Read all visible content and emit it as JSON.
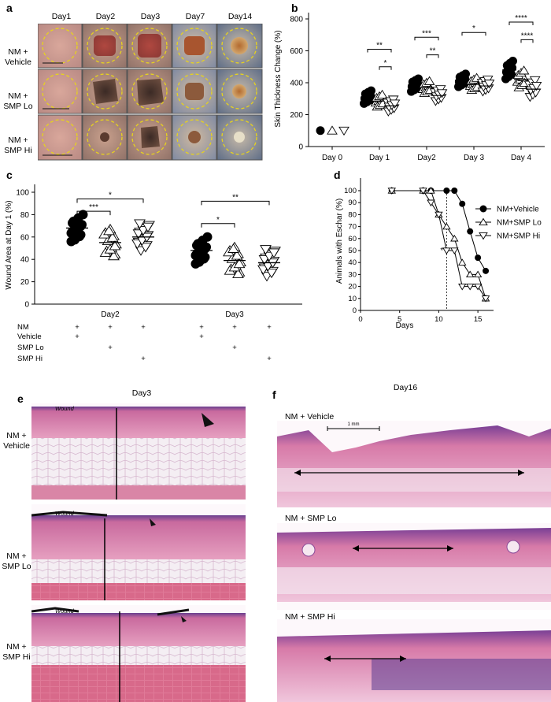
{
  "panels": {
    "a": "a",
    "b": "b",
    "c": "c",
    "d": "d",
    "e": "e",
    "f": "f"
  },
  "panel_a": {
    "days": [
      "Day1",
      "Day2",
      "Day3",
      "Day7",
      "Day14"
    ],
    "groups": [
      [
        "NM +",
        "Vehicle"
      ],
      [
        "NM +",
        "SMP Lo"
      ],
      [
        "NM +",
        "SMP Hi"
      ]
    ]
  },
  "panel_e": {
    "title": "Day3",
    "groups": [
      [
        "NM +",
        "Vehicle"
      ],
      [
        "NM +",
        "SMP Lo"
      ],
      [
        "NM +",
        "SMP Hi"
      ]
    ],
    "wound_label": "Wound"
  },
  "panel_f": {
    "title": "Day16",
    "groups": [
      "NM + Vehicle",
      "NM + SMP Lo",
      "NM + SMP Hi"
    ],
    "scale_bar": "1 mm"
  },
  "chart_data": [
    {
      "id": "b",
      "type": "scatter",
      "ylabel": "Skin Thickness Change (%)",
      "categories": [
        "Day 0",
        "Day 1",
        "Day2",
        "Day 3",
        "Day 4"
      ],
      "yticks": [
        0,
        200,
        400,
        600,
        800
      ],
      "ylim": [
        0,
        800
      ],
      "series": [
        {
          "marker": "circle",
          "means": [
            100,
            310,
            385,
            415,
            480
          ]
        },
        {
          "marker": "triangle-up",
          "means": [
            100,
            285,
            370,
            390,
            420
          ]
        },
        {
          "marker": "triangle-down",
          "means": [
            100,
            255,
            320,
            380,
            360
          ]
        }
      ],
      "significance": [
        {
          "category": "Day 1",
          "from": 0,
          "to": 2,
          "label": "**"
        },
        {
          "category": "Day 1",
          "from": 1,
          "to": 2,
          "label": "*"
        },
        {
          "category": "Day2",
          "from": 0,
          "to": 2,
          "label": "***"
        },
        {
          "category": "Day2",
          "from": 1,
          "to": 2,
          "label": "**"
        },
        {
          "category": "Day 3",
          "from": 0,
          "to": 2,
          "label": "*"
        },
        {
          "category": "Day 4",
          "from": 0,
          "to": 2,
          "label": "****"
        },
        {
          "category": "Day 4",
          "from": 1,
          "to": 2,
          "label": "****"
        }
      ]
    },
    {
      "id": "c",
      "type": "scatter",
      "ylabel": "Wound Area at Day 1 (%)",
      "categories": [
        "Day2",
        "Day3"
      ],
      "yticks": [
        0,
        20,
        40,
        60,
        80,
        100
      ],
      "ylim": [
        0,
        100
      ],
      "series": [
        {
          "marker": "circle",
          "means": [
            68,
            48
          ]
        },
        {
          "marker": "triangle-up",
          "means": [
            55,
            39
          ]
        },
        {
          "marker": "triangle-down",
          "means": [
            60,
            37
          ]
        }
      ],
      "significance": [
        {
          "category": "Day2",
          "from": 0,
          "to": 1,
          "label": "***"
        },
        {
          "category": "Day2",
          "from": 0,
          "to": 2,
          "label": "*"
        },
        {
          "category": "Day3",
          "from": 0,
          "to": 1,
          "label": "*"
        },
        {
          "category": "Day3",
          "from": 0,
          "to": 2,
          "label": "**"
        }
      ],
      "design_table": {
        "rows": [
          "NM",
          "Vehicle",
          "SMP Lo",
          "SMP Hi"
        ],
        "mark": "+"
      }
    },
    {
      "id": "d",
      "type": "line",
      "xlabel": "Days",
      "ylabel": "Animals with Eschar (%)",
      "xticks": [
        0,
        5,
        10,
        15
      ],
      "yticks": [
        0,
        10,
        20,
        30,
        40,
        50,
        60,
        70,
        80,
        90,
        100
      ],
      "xlim": [
        0,
        17
      ],
      "ylim": [
        0,
        100
      ],
      "vline_x": 11,
      "annotation": "*",
      "legend_position": "right",
      "series": [
        {
          "name": "NM+Vehicle",
          "marker": "circle",
          "x": [
            4,
            8,
            9,
            11,
            12,
            13,
            14,
            15,
            16
          ],
          "y": [
            100,
            100,
            100,
            100,
            100,
            89,
            66,
            44,
            33
          ]
        },
        {
          "name": "NM+SMP Lo",
          "marker": "triangle-up",
          "x": [
            4,
            8,
            9,
            10,
            11,
            12,
            13,
            14,
            15,
            16
          ],
          "y": [
            100,
            100,
            100,
            80,
            70,
            60,
            40,
            30,
            30,
            10
          ]
        },
        {
          "name": "NM+SMP Hi",
          "marker": "triangle-down",
          "x": [
            4,
            8,
            9,
            10,
            11,
            12,
            13,
            14,
            15,
            16
          ],
          "y": [
            100,
            100,
            90,
            80,
            50,
            50,
            20,
            20,
            20,
            10
          ]
        }
      ]
    }
  ]
}
